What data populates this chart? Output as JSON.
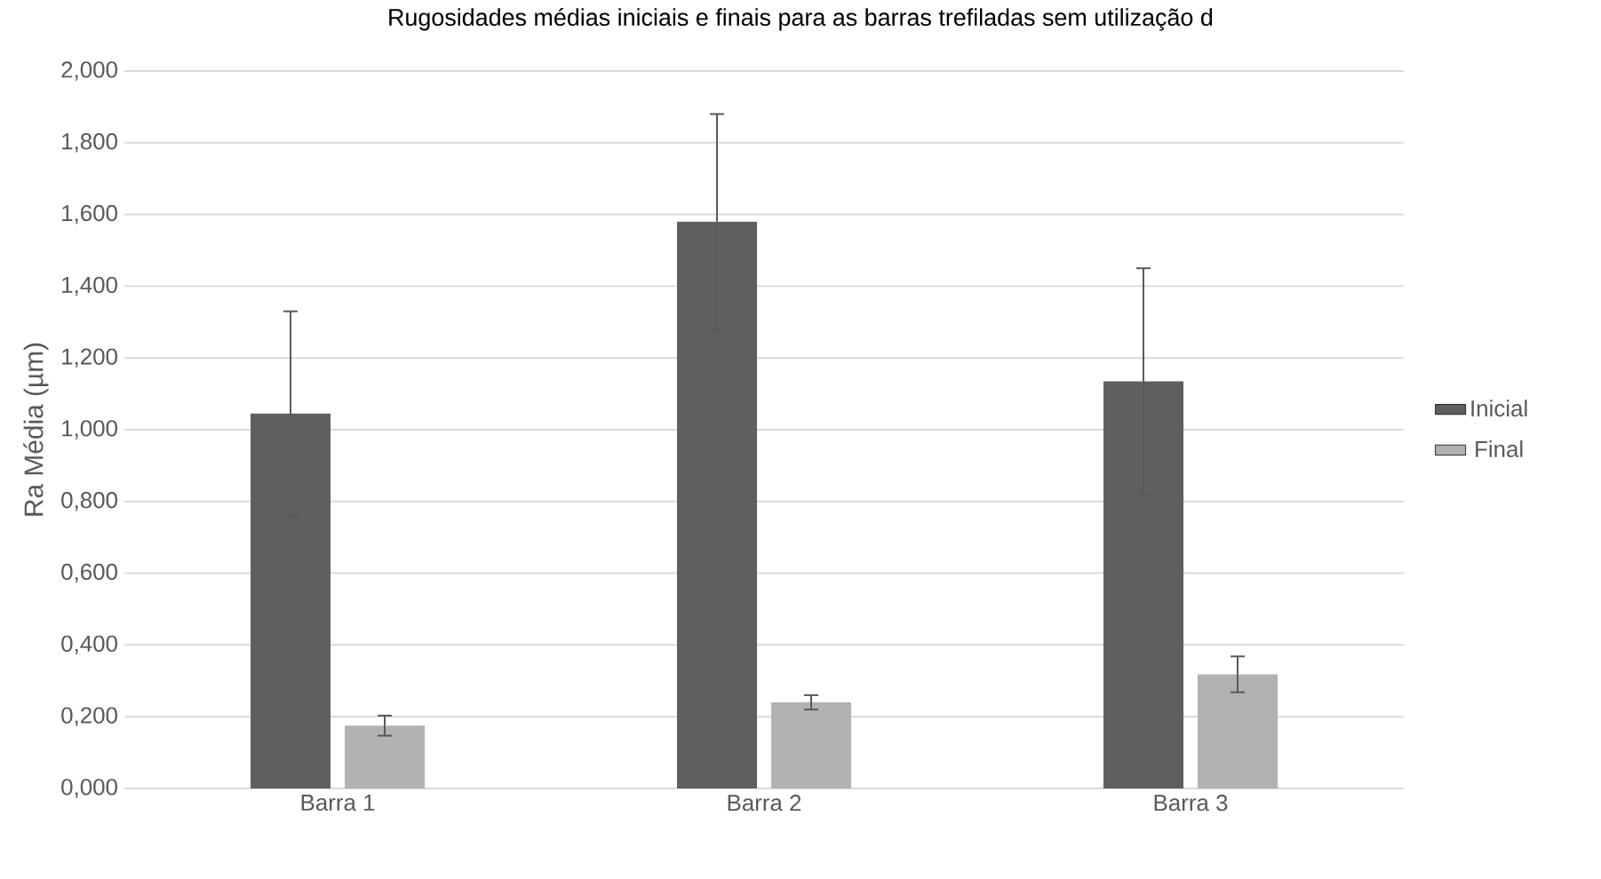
{
  "chart_data": {
    "type": "bar",
    "title": "Rugosidades médias iniciais e finais para as barras trefiladas sem utilização d",
    "ylabel": "Ra Média (µm)",
    "categories": [
      "Barra 1",
      "Barra 2",
      "Barra 3"
    ],
    "series": [
      {
        "name": "Inicial",
        "color": "#5f5f5f",
        "values": [
          1.045,
          1.58,
          1.135
        ],
        "errors": [
          0.285,
          0.3,
          0.315
        ]
      },
      {
        "name": "Final",
        "color": "#b2b2b2",
        "values": [
          0.175,
          0.24,
          0.318
        ],
        "errors": [
          0.028,
          0.02,
          0.05
        ]
      }
    ],
    "ylim": [
      0,
      2
    ],
    "yticks": [
      {
        "value": 0,
        "label": "0,000"
      },
      {
        "value": 0.2,
        "label": "0,200"
      },
      {
        "value": 0.4,
        "label": "0,400"
      },
      {
        "value": 0.6,
        "label": "0,600"
      },
      {
        "value": 0.8,
        "label": "0,800"
      },
      {
        "value": 1.0,
        "label": "1,000"
      },
      {
        "value": 1.2,
        "label": "1,200"
      },
      {
        "value": 1.4,
        "label": "1,400"
      },
      {
        "value": 1.6,
        "label": "1,600"
      },
      {
        "value": 1.8,
        "label": "1,800"
      },
      {
        "value": 2.0,
        "label": "2,000"
      }
    ],
    "grid": "y",
    "legend": "right"
  }
}
